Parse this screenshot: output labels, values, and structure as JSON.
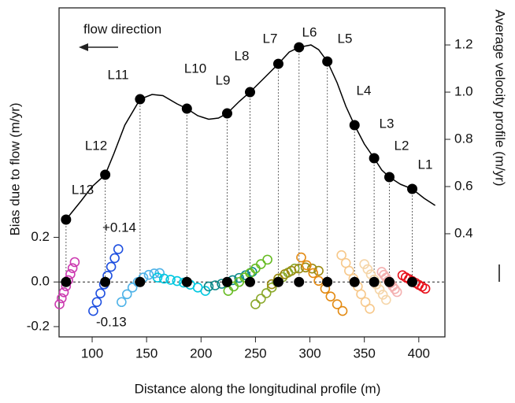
{
  "chart_data": {
    "type": "scatter",
    "xlabel": "Distance along the longitudinal profile (m)",
    "ylabel": "Bias due to flow (m/yr)",
    "y2label": "Average velocity profile (m/yr)",
    "xlim": [
      69.6,
      424
    ],
    "xticks": [
      100,
      150,
      200,
      250,
      300,
      350,
      400
    ],
    "ylim": [
      -0.246,
      1.228
    ],
    "yticks": [
      -0.2,
      {
        "value": 0,
        "label": "0.0"
      },
      0.2
    ],
    "y2lim": [
      -0.037,
      1.357
    ],
    "y2ticks": [
      0.4,
      0.6,
      0.8,
      {
        "value": 1,
        "label": "1.0"
      },
      1.2
    ],
    "annotations": [
      "flow direction",
      "+0.14",
      "-0.13"
    ],
    "series": [
      {
        "type": "line",
        "axis": "y2",
        "color": "#000000",
        "x": [
          76,
          90,
          100,
          112,
          120,
          130,
          144,
          155,
          165,
          178,
          187,
          197,
          207,
          216,
          224,
          235,
          245,
          258,
          271,
          281,
          290,
          301,
          308,
          316,
          325,
          333,
          341,
          350,
          359,
          366,
          373,
          383,
          394,
          405,
          415
        ],
        "values": [
          0.46,
          0.54,
          0.6,
          0.65,
          0.74,
          0.86,
          0.97,
          0.99,
          0.985,
          0.95,
          0.93,
          0.9,
          0.885,
          0.89,
          0.91,
          0.96,
          1.0,
          1.06,
          1.12,
          1.17,
          1.19,
          1.2,
          1.18,
          1.13,
          1.04,
          0.94,
          0.86,
          0.78,
          0.72,
          0.67,
          0.64,
          0.61,
          0.59,
          0.55,
          0.52
        ]
      },
      {
        "type": "scatter",
        "axis": "y2",
        "color": "#000000",
        "marker": "filled",
        "x": [
          76,
          112,
          144,
          187,
          224,
          245,
          271,
          290,
          316,
          341,
          359,
          373,
          394
        ],
        "values": [
          0.46,
          0.65,
          0.97,
          0.93,
          0.91,
          1.0,
          1.12,
          1.19,
          1.13,
          0.86,
          0.72,
          0.64,
          0.59
        ],
        "labels": [
          "L13",
          "L12",
          "L11",
          "L10",
          "L9",
          "L8",
          "L7",
          "L6",
          "L5",
          "L4",
          "L3",
          "L2",
          "L1"
        ]
      },
      {
        "type": "scatter",
        "axis": "y",
        "color": "#cc3ab0",
        "marker": "open",
        "x": [
          70,
          72,
          74,
          76,
          78,
          80,
          82,
          84
        ],
        "values": [
          -0.1,
          -0.073,
          -0.046,
          -0.019,
          0.008,
          0.035,
          0.062,
          0.089
        ]
      },
      {
        "type": "scatter",
        "axis": "y",
        "color": "#1f50e0",
        "marker": "open",
        "x": [
          101,
          104.3,
          107.6,
          110.9,
          114.1,
          117.4,
          120.7,
          124
        ],
        "values": [
          -0.13,
          -0.09,
          -0.051,
          -0.011,
          0.028,
          0.068,
          0.107,
          0.147
        ]
      },
      {
        "type": "scatter",
        "axis": "y",
        "color": "#4fb3e8",
        "marker": "open",
        "x": [
          127,
          132,
          137,
          142,
          147,
          152,
          157,
          162
        ],
        "values": [
          -0.09,
          -0.055,
          -0.025,
          0.0,
          0.02,
          0.032,
          0.038,
          0.04
        ]
      },
      {
        "type": "scatter",
        "axis": "y",
        "color": "#00c8e0",
        "marker": "open",
        "x": [
          160,
          166,
          172,
          178,
          184,
          190,
          197,
          204
        ],
        "values": [
          0.02,
          0.015,
          0.01,
          0.004,
          -0.003,
          -0.012,
          -0.025,
          -0.04
        ]
      },
      {
        "type": "scatter",
        "axis": "y",
        "color": "#0d8a8a",
        "marker": "open",
        "x": [
          207,
          213,
          219,
          224,
          229,
          235,
          241,
          247
        ],
        "values": [
          -0.02,
          -0.015,
          -0.008,
          0.0,
          0.008,
          0.018,
          0.03,
          0.045
        ]
      },
      {
        "type": "scatter",
        "axis": "y",
        "color": "#66bb22",
        "marker": "open",
        "x": [
          225,
          230,
          235,
          240,
          245,
          250,
          255,
          261
        ],
        "values": [
          -0.04,
          -0.02,
          0.0,
          0.02,
          0.04,
          0.06,
          0.08,
          0.1
        ]
      },
      {
        "type": "scatter",
        "axis": "y",
        "color": "#8aa82a",
        "marker": "open",
        "x": [
          250,
          255,
          260,
          265,
          270,
          275,
          280,
          286
        ],
        "values": [
          -0.1,
          -0.075,
          -0.05,
          -0.025,
          0.0,
          0.022,
          0.042,
          0.06
        ]
      },
      {
        "type": "scatter",
        "axis": "y",
        "color": "#9b8a10",
        "marker": "open",
        "x": [
          265,
          271,
          277,
          283,
          290,
          296,
          302,
          308
        ],
        "values": [
          -0.01,
          0.015,
          0.035,
          0.05,
          0.06,
          0.065,
          0.06,
          0.05
        ]
      },
      {
        "type": "scatter",
        "axis": "y",
        "color": "#e38a12",
        "marker": "open",
        "x": [
          292,
          297,
          303,
          308,
          314,
          319,
          325,
          330
        ],
        "values": [
          0.11,
          0.075,
          0.04,
          0.005,
          -0.03,
          -0.065,
          -0.1,
          -0.13
        ]
      },
      {
        "type": "scatter",
        "axis": "y",
        "color": "#f7c88a",
        "marker": "open",
        "x": [
          329,
          333,
          336,
          340,
          344,
          347,
          351,
          355
        ],
        "values": [
          0.12,
          0.085,
          0.05,
          0.015,
          -0.02,
          -0.055,
          -0.09,
          -0.12
        ]
      },
      {
        "type": "scatter",
        "axis": "y",
        "color": "#f5d5a8",
        "marker": "open",
        "x": [
          350,
          353,
          356,
          359,
          361,
          364,
          367,
          370
        ],
        "values": [
          0.08,
          0.057,
          0.034,
          0.011,
          -0.011,
          -0.034,
          -0.057,
          -0.08
        ]
      },
      {
        "type": "scatter",
        "axis": "y",
        "color": "#f4b0b0",
        "marker": "open",
        "x": [
          366,
          368,
          370,
          372,
          374,
          376,
          378,
          380
        ],
        "values": [
          0.045,
          0.032,
          0.019,
          0.006,
          -0.006,
          -0.019,
          -0.032,
          -0.045
        ]
      },
      {
        "type": "scatter",
        "axis": "y",
        "color": "#e8101a",
        "marker": "open",
        "x": [
          385,
          388,
          391,
          394,
          397,
          400,
          403,
          406
        ],
        "values": [
          0.03,
          0.021,
          0.013,
          0.004,
          -0.004,
          -0.013,
          -0.021,
          -0.03
        ]
      },
      {
        "type": "scatter",
        "axis": "y",
        "color": "#000000",
        "marker": "filled",
        "x": [
          76,
          112,
          144,
          187,
          224,
          245,
          271,
          290,
          316,
          341,
          359,
          373,
          394
        ],
        "values": [
          0,
          0,
          0,
          0,
          0,
          0,
          0,
          0,
          0,
          0,
          0,
          0,
          0
        ]
      }
    ]
  }
}
